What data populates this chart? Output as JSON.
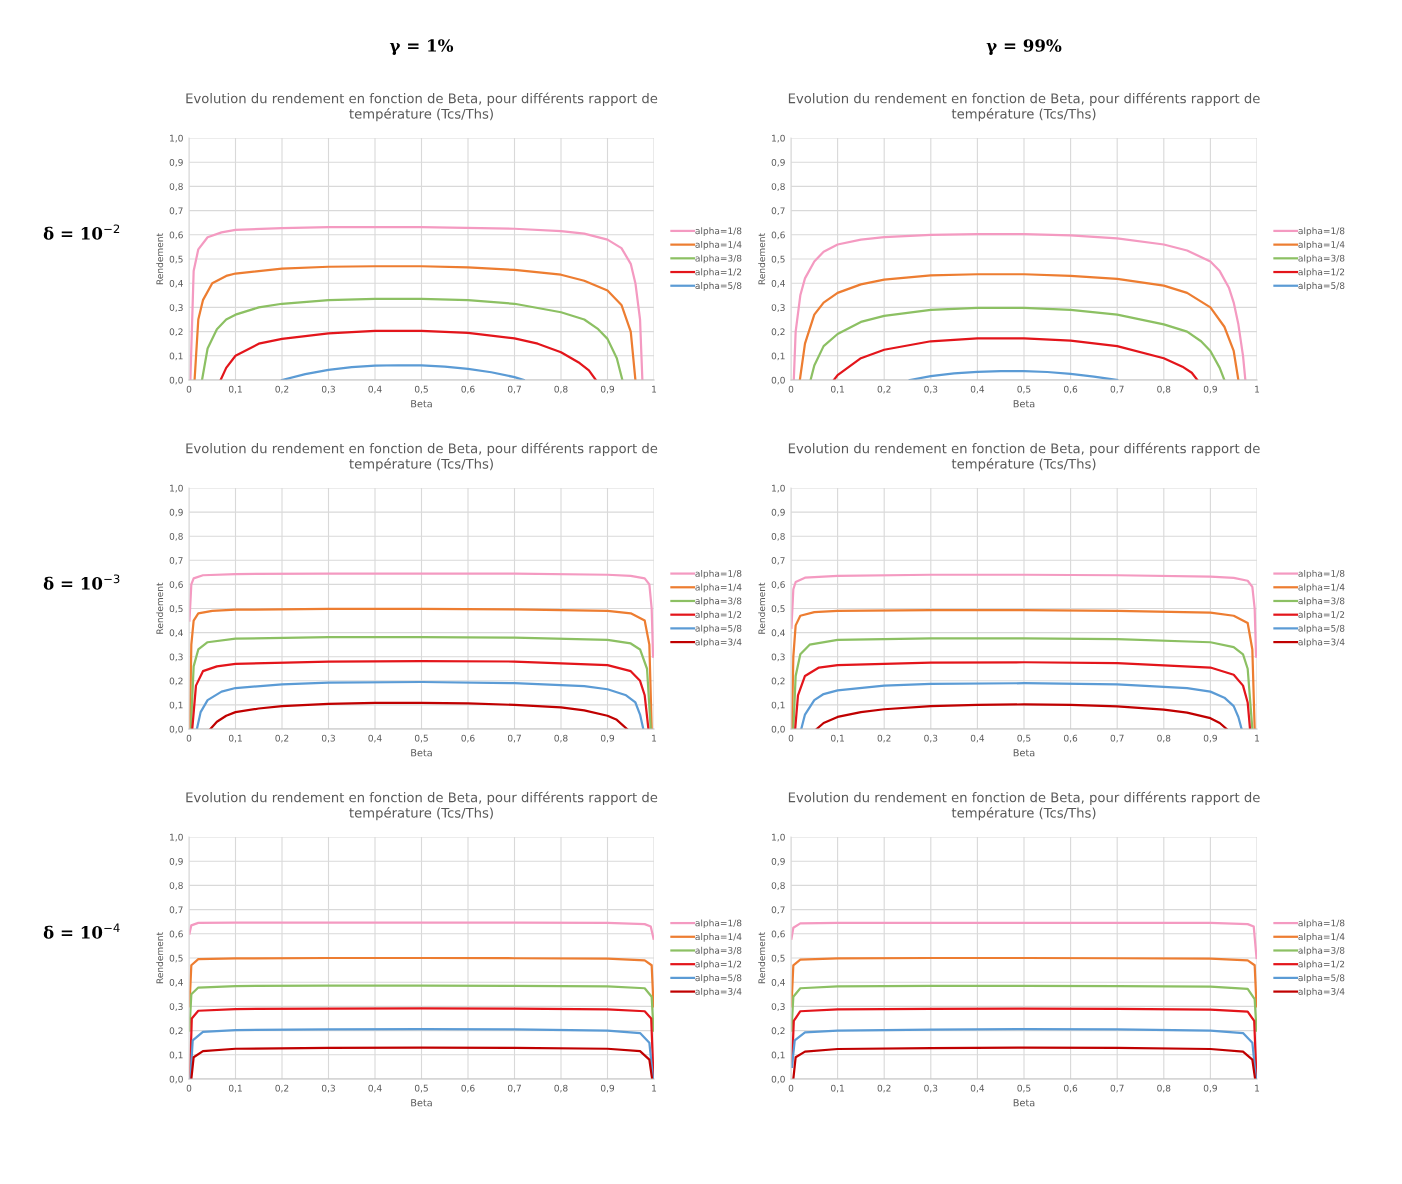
{
  "chart_data": [
    {
      "type": "line",
      "title": "Evolution du rendement en fonction de Beta, pour différents rapport de\ntempérature (Tcs/Ths)",
      "xlabel": "Beta",
      "ylabel": "Rendement",
      "annotations": [
        "γ = 1%",
        "δ = 10$^{−2}$"
      ],
      "xlim": [
        0,
        1
      ],
      "ylim": [
        0,
        1
      ],
      "xticks": [
        0,
        {
          "value": 0.1,
          "label": "0,1"
        },
        {
          "value": 0.2,
          "label": "0,2"
        },
        {
          "value": 0.3,
          "label": "0,3"
        },
        {
          "value": 0.4,
          "label": "0,4"
        },
        {
          "value": 0.5,
          "label": "0,5"
        },
        {
          "value": 0.6,
          "label": "0,6"
        },
        {
          "value": 0.7,
          "label": "0,7"
        },
        {
          "value": 0.8,
          "label": "0,8"
        },
        {
          "value": 0.9,
          "label": "0,9"
        },
        1
      ],
      "yticks": [
        {
          "value": 0,
          "label": "0,0"
        },
        {
          "value": 0.1,
          "label": "0,1"
        },
        {
          "value": 0.2,
          "label": "0,2"
        },
        {
          "value": 0.3,
          "label": "0,3"
        },
        {
          "value": 0.4,
          "label": "0,4"
        },
        {
          "value": 0.5,
          "label": "0,5"
        },
        {
          "value": 0.6,
          "label": "0,6"
        },
        {
          "value": 0.7,
          "label": "0,7"
        },
        {
          "value": 0.8,
          "label": "0,8"
        },
        {
          "value": 0.9,
          "label": "0,9"
        },
        {
          "value": 1,
          "label": "1,0"
        }
      ],
      "grid": true,
      "legend": "right",
      "marker": "none",
      "line_style": "solid",
      "series": [
        {
          "name": "alpha=1/8",
          "color": "#f49ac1",
          "x": [
            0.003,
            0.01,
            0.02,
            0.04,
            0.07,
            0.1,
            0.2,
            0.3,
            0.5,
            0.7,
            0.8,
            0.85,
            0.9,
            0.93,
            0.95,
            0.96,
            0.97,
            0.975
          ],
          "values": [
            0,
            0.45,
            0.54,
            0.59,
            0.61,
            0.62,
            0.628,
            0.632,
            0.632,
            0.625,
            0.615,
            0.605,
            0.58,
            0.545,
            0.48,
            0.4,
            0.25,
            0
          ]
        },
        {
          "name": "alpha=1/4",
          "color": "#ed7d31",
          "x": [
            0.012,
            0.02,
            0.03,
            0.05,
            0.08,
            0.1,
            0.2,
            0.3,
            0.4,
            0.5,
            0.6,
            0.7,
            0.8,
            0.85,
            0.9,
            0.93,
            0.95,
            0.96
          ],
          "values": [
            0,
            0.25,
            0.33,
            0.4,
            0.43,
            0.44,
            0.46,
            0.468,
            0.47,
            0.47,
            0.465,
            0.455,
            0.435,
            0.41,
            0.37,
            0.31,
            0.2,
            0
          ]
        },
        {
          "name": "alpha=3/8",
          "color": "#8cc063",
          "x": [
            0.028,
            0.04,
            0.06,
            0.08,
            0.1,
            0.15,
            0.2,
            0.3,
            0.4,
            0.5,
            0.6,
            0.7,
            0.8,
            0.85,
            0.88,
            0.9,
            0.92,
            0.932
          ],
          "values": [
            0,
            0.13,
            0.21,
            0.25,
            0.27,
            0.3,
            0.315,
            0.33,
            0.335,
            0.335,
            0.33,
            0.315,
            0.28,
            0.25,
            0.21,
            0.17,
            0.09,
            0
          ]
        },
        {
          "name": "alpha=1/2",
          "color": "#e3151b",
          "x": [
            0.068,
            0.08,
            0.1,
            0.15,
            0.2,
            0.3,
            0.4,
            0.5,
            0.6,
            0.7,
            0.75,
            0.8,
            0.84,
            0.86,
            0.875
          ],
          "values": [
            0,
            0.05,
            0.1,
            0.15,
            0.17,
            0.193,
            0.203,
            0.203,
            0.195,
            0.172,
            0.15,
            0.115,
            0.07,
            0.04,
            0
          ]
        },
        {
          "name": "alpha=5/8",
          "color": "#5b9bd5",
          "x": [
            0.2,
            0.25,
            0.3,
            0.35,
            0.4,
            0.45,
            0.5,
            0.55,
            0.6,
            0.65,
            0.7,
            0.72
          ],
          "values": [
            0,
            0.024,
            0.042,
            0.053,
            0.059,
            0.061,
            0.06,
            0.055,
            0.046,
            0.032,
            0.012,
            0
          ]
        }
      ]
    },
    {
      "type": "line",
      "title": "Evolution du rendement en fonction de Beta, pour différents rapport de\ntempérature (Tcs/Ths)",
      "xlabel": "Beta",
      "ylabel": "Rendement",
      "annotations": [
        "γ = 99%"
      ],
      "xlim": [
        0,
        1
      ],
      "ylim": [
        0,
        1
      ],
      "xticks": [
        0,
        {
          "value": 0.1,
          "label": "0,1"
        },
        {
          "value": 0.2,
          "label": "0,2"
        },
        {
          "value": 0.3,
          "label": "0,3"
        },
        {
          "value": 0.4,
          "label": "0,4"
        },
        {
          "value": 0.5,
          "label": "0,5"
        },
        {
          "value": 0.6,
          "label": "0,6"
        },
        {
          "value": 0.7,
          "label": "0,7"
        },
        {
          "value": 0.8,
          "label": "0,8"
        },
        {
          "value": 0.9,
          "label": "0,9"
        },
        1
      ],
      "yticks": [
        {
          "value": 0,
          "label": "0,0"
        },
        {
          "value": 0.1,
          "label": "0,1"
        },
        {
          "value": 0.2,
          "label": "0,2"
        },
        {
          "value": 0.3,
          "label": "0,3"
        },
        {
          "value": 0.4,
          "label": "0,4"
        },
        {
          "value": 0.5,
          "label": "0,5"
        },
        {
          "value": 0.6,
          "label": "0,6"
        },
        {
          "value": 0.7,
          "label": "0,7"
        },
        {
          "value": 0.8,
          "label": "0,8"
        },
        {
          "value": 0.9,
          "label": "0,9"
        },
        {
          "value": 1,
          "label": "1,0"
        }
      ],
      "grid": true,
      "legend": "right",
      "marker": "none",
      "line_style": "solid",
      "series": [
        {
          "name": "alpha=1/8",
          "color": "#f49ac1",
          "x": [
            0.006,
            0.01,
            0.02,
            0.03,
            0.05,
            0.07,
            0.1,
            0.15,
            0.2,
            0.3,
            0.4,
            0.5,
            0.6,
            0.7,
            0.8,
            0.85,
            0.9,
            0.92,
            0.94,
            0.95,
            0.96,
            0.97,
            0.975
          ],
          "values": [
            0,
            0.2,
            0.35,
            0.42,
            0.49,
            0.53,
            0.56,
            0.58,
            0.59,
            0.6,
            0.603,
            0.603,
            0.598,
            0.585,
            0.56,
            0.535,
            0.49,
            0.45,
            0.38,
            0.32,
            0.23,
            0.1,
            0
          ]
        },
        {
          "name": "alpha=1/4",
          "color": "#ed7d31",
          "x": [
            0.019,
            0.03,
            0.05,
            0.07,
            0.1,
            0.15,
            0.2,
            0.3,
            0.4,
            0.5,
            0.6,
            0.7,
            0.8,
            0.85,
            0.9,
            0.93,
            0.95,
            0.96
          ],
          "values": [
            0,
            0.15,
            0.27,
            0.32,
            0.36,
            0.395,
            0.415,
            0.432,
            0.437,
            0.437,
            0.43,
            0.418,
            0.39,
            0.36,
            0.3,
            0.22,
            0.12,
            0
          ]
        },
        {
          "name": "alpha=3/8",
          "color": "#8cc063",
          "x": [
            0.042,
            0.05,
            0.07,
            0.1,
            0.15,
            0.2,
            0.3,
            0.4,
            0.5,
            0.6,
            0.7,
            0.8,
            0.85,
            0.88,
            0.9,
            0.92,
            0.93
          ],
          "values": [
            0,
            0.06,
            0.14,
            0.19,
            0.24,
            0.265,
            0.29,
            0.298,
            0.298,
            0.29,
            0.27,
            0.23,
            0.2,
            0.16,
            0.12,
            0.05,
            0
          ]
        },
        {
          "name": "alpha=1/2",
          "color": "#e3151b",
          "x": [
            0.092,
            0.1,
            0.15,
            0.2,
            0.3,
            0.4,
            0.5,
            0.6,
            0.7,
            0.8,
            0.84,
            0.86,
            0.872
          ],
          "values": [
            0,
            0.02,
            0.09,
            0.125,
            0.16,
            0.172,
            0.172,
            0.163,
            0.14,
            0.09,
            0.055,
            0.03,
            0
          ]
        },
        {
          "name": "alpha=5/8",
          "color": "#5b9bd5",
          "x": [
            0.255,
            0.3,
            0.35,
            0.4,
            0.45,
            0.5,
            0.55,
            0.6,
            0.65,
            0.7
          ],
          "values": [
            0,
            0.016,
            0.027,
            0.034,
            0.037,
            0.037,
            0.033,
            0.025,
            0.014,
            0
          ]
        }
      ]
    },
    {
      "type": "line",
      "title": "Evolution du rendement en fonction de Beta, pour différents rapport de\ntempérature (Tcs/Ths)",
      "xlabel": "Beta",
      "ylabel": "Rendement",
      "annotations": [
        "δ = 10$^{−3}$"
      ],
      "xlim": [
        0,
        1
      ],
      "ylim": [
        0,
        1
      ],
      "xticks": [
        0,
        {
          "value": 0.1,
          "label": "0,1"
        },
        {
          "value": 0.2,
          "label": "0,2"
        },
        {
          "value": 0.3,
          "label": "0,3"
        },
        {
          "value": 0.4,
          "label": "0,4"
        },
        {
          "value": 0.5,
          "label": "0,5"
        },
        {
          "value": 0.6,
          "label": "0,6"
        },
        {
          "value": 0.7,
          "label": "0,7"
        },
        {
          "value": 0.8,
          "label": "0,8"
        },
        {
          "value": 0.9,
          "label": "0,9"
        },
        1
      ],
      "yticks": [
        {
          "value": 0,
          "label": "0,0"
        },
        {
          "value": 0.1,
          "label": "0,1"
        },
        {
          "value": 0.2,
          "label": "0,2"
        },
        {
          "value": 0.3,
          "label": "0,3"
        },
        {
          "value": 0.4,
          "label": "0,4"
        },
        {
          "value": 0.5,
          "label": "0,5"
        },
        {
          "value": 0.6,
          "label": "0,6"
        },
        {
          "value": 0.7,
          "label": "0,7"
        },
        {
          "value": 0.8,
          "label": "0,8"
        },
        {
          "value": 0.9,
          "label": "0,9"
        },
        {
          "value": 1,
          "label": "1,0"
        }
      ],
      "grid": true,
      "legend": "right",
      "marker": "none",
      "line_style": "solid",
      "series": [
        {
          "name": "alpha=1/8",
          "color": "#f49ac1",
          "x": [
            0.001,
            0.005,
            0.01,
            0.03,
            0.1,
            0.3,
            0.5,
            0.7,
            0.9,
            0.95,
            0.98,
            0.99,
            0.995,
            0.998
          ],
          "values": [
            0.45,
            0.6,
            0.625,
            0.638,
            0.643,
            0.645,
            0.645,
            0.645,
            0.64,
            0.635,
            0.625,
            0.6,
            0.5,
            0.3
          ]
        },
        {
          "name": "alpha=1/4",
          "color": "#ed7d31",
          "x": [
            0.002,
            0.005,
            0.01,
            0.02,
            0.05,
            0.1,
            0.3,
            0.5,
            0.7,
            0.9,
            0.95,
            0.98,
            0.99,
            0.995
          ],
          "values": [
            0,
            0.35,
            0.45,
            0.48,
            0.49,
            0.495,
            0.498,
            0.498,
            0.496,
            0.49,
            0.48,
            0.45,
            0.35,
            0
          ]
        },
        {
          "name": "alpha=3/8",
          "color": "#8cc063",
          "x": [
            0.004,
            0.01,
            0.02,
            0.04,
            0.1,
            0.3,
            0.5,
            0.7,
            0.9,
            0.95,
            0.97,
            0.985,
            0.993
          ],
          "values": [
            0,
            0.26,
            0.33,
            0.36,
            0.375,
            0.381,
            0.381,
            0.379,
            0.37,
            0.355,
            0.33,
            0.25,
            0
          ]
        },
        {
          "name": "alpha=1/2",
          "color": "#e3151b",
          "x": [
            0.007,
            0.015,
            0.03,
            0.06,
            0.1,
            0.3,
            0.5,
            0.7,
            0.9,
            0.95,
            0.97,
            0.98,
            0.988
          ],
          "values": [
            0,
            0.18,
            0.24,
            0.26,
            0.27,
            0.28,
            0.282,
            0.28,
            0.265,
            0.24,
            0.2,
            0.14,
            0
          ]
        },
        {
          "name": "alpha=5/8",
          "color": "#5b9bd5",
          "x": [
            0.017,
            0.025,
            0.04,
            0.07,
            0.1,
            0.2,
            0.3,
            0.5,
            0.7,
            0.85,
            0.9,
            0.94,
            0.96,
            0.97,
            0.977
          ],
          "values": [
            0,
            0.07,
            0.12,
            0.155,
            0.17,
            0.185,
            0.192,
            0.195,
            0.19,
            0.178,
            0.165,
            0.14,
            0.11,
            0.06,
            0
          ]
        },
        {
          "name": "alpha=3/4",
          "color": "#c00000",
          "x": [
            0.046,
            0.06,
            0.08,
            0.1,
            0.15,
            0.2,
            0.3,
            0.4,
            0.5,
            0.6,
            0.7,
            0.8,
            0.85,
            0.9,
            0.92,
            0.942
          ],
          "values": [
            0,
            0.03,
            0.055,
            0.07,
            0.085,
            0.095,
            0.104,
            0.108,
            0.108,
            0.106,
            0.1,
            0.09,
            0.077,
            0.055,
            0.038,
            0
          ]
        }
      ]
    },
    {
      "type": "line",
      "title": "Evolution du rendement en fonction de Beta, pour différents rapport de\ntempérature (Tcs/Ths)",
      "xlabel": "Beta",
      "ylabel": "Rendement",
      "xlim": [
        0,
        1
      ],
      "ylim": [
        0,
        1
      ],
      "xticks": [
        0,
        {
          "value": 0.1,
          "label": "0,1"
        },
        {
          "value": 0.2,
          "label": "0,2"
        },
        {
          "value": 0.3,
          "label": "0,3"
        },
        {
          "value": 0.4,
          "label": "0,4"
        },
        {
          "value": 0.5,
          "label": "0,5"
        },
        {
          "value": 0.6,
          "label": "0,6"
        },
        {
          "value": 0.7,
          "label": "0,7"
        },
        {
          "value": 0.8,
          "label": "0,8"
        },
        {
          "value": 0.9,
          "label": "0,9"
        },
        1
      ],
      "yticks": [
        {
          "value": 0,
          "label": "0,0"
        },
        {
          "value": 0.1,
          "label": "0,1"
        },
        {
          "value": 0.2,
          "label": "0,2"
        },
        {
          "value": 0.3,
          "label": "0,3"
        },
        {
          "value": 0.4,
          "label": "0,4"
        },
        {
          "value": 0.5,
          "label": "0,5"
        },
        {
          "value": 0.6,
          "label": "0,6"
        },
        {
          "value": 0.7,
          "label": "0,7"
        },
        {
          "value": 0.8,
          "label": "0,8"
        },
        {
          "value": 0.9,
          "label": "0,9"
        },
        {
          "value": 1,
          "label": "1,0"
        }
      ],
      "grid": true,
      "legend": "right",
      "marker": "none",
      "line_style": "solid",
      "series": [
        {
          "name": "alpha=1/8",
          "color": "#f49ac1",
          "x": [
            0.001,
            0.005,
            0.01,
            0.03,
            0.1,
            0.3,
            0.5,
            0.7,
            0.9,
            0.95,
            0.98,
            0.99,
            0.995,
            0.998
          ],
          "values": [
            0.42,
            0.58,
            0.61,
            0.628,
            0.635,
            0.64,
            0.64,
            0.638,
            0.632,
            0.627,
            0.615,
            0.59,
            0.5,
            0.3
          ]
        },
        {
          "name": "alpha=1/4",
          "color": "#ed7d31",
          "x": [
            0.002,
            0.005,
            0.01,
            0.02,
            0.05,
            0.1,
            0.3,
            0.5,
            0.7,
            0.9,
            0.95,
            0.98,
            0.99,
            0.995
          ],
          "values": [
            0,
            0.3,
            0.43,
            0.47,
            0.485,
            0.49,
            0.493,
            0.493,
            0.49,
            0.483,
            0.47,
            0.44,
            0.33,
            0
          ]
        },
        {
          "name": "alpha=3/8",
          "color": "#8cc063",
          "x": [
            0.005,
            0.01,
            0.02,
            0.04,
            0.1,
            0.3,
            0.5,
            0.7,
            0.9,
            0.95,
            0.97,
            0.98,
            0.99
          ],
          "values": [
            0,
            0.22,
            0.31,
            0.35,
            0.37,
            0.376,
            0.376,
            0.373,
            0.36,
            0.34,
            0.31,
            0.25,
            0
          ]
        },
        {
          "name": "alpha=1/2",
          "color": "#e3151b",
          "x": [
            0.009,
            0.015,
            0.03,
            0.06,
            0.1,
            0.3,
            0.5,
            0.7,
            0.9,
            0.95,
            0.97,
            0.98,
            0.985
          ],
          "values": [
            0,
            0.14,
            0.22,
            0.255,
            0.265,
            0.275,
            0.277,
            0.273,
            0.255,
            0.225,
            0.18,
            0.11,
            0
          ]
        },
        {
          "name": "alpha=5/8",
          "color": "#5b9bd5",
          "x": [
            0.022,
            0.03,
            0.05,
            0.07,
            0.1,
            0.2,
            0.3,
            0.5,
            0.7,
            0.85,
            0.9,
            0.93,
            0.95,
            0.96,
            0.967
          ],
          "values": [
            0,
            0.06,
            0.12,
            0.145,
            0.16,
            0.18,
            0.187,
            0.19,
            0.185,
            0.17,
            0.155,
            0.13,
            0.095,
            0.05,
            0
          ]
        },
        {
          "name": "alpha=3/4",
          "color": "#c00000",
          "x": [
            0.055,
            0.07,
            0.1,
            0.15,
            0.2,
            0.3,
            0.4,
            0.5,
            0.6,
            0.7,
            0.8,
            0.85,
            0.9,
            0.92,
            0.935
          ],
          "values": [
            0,
            0.025,
            0.05,
            0.07,
            0.082,
            0.095,
            0.1,
            0.102,
            0.1,
            0.094,
            0.08,
            0.068,
            0.045,
            0.025,
            0
          ]
        }
      ]
    },
    {
      "type": "line",
      "title": "Evolution du rendement en fonction de Beta, pour différents rapport de\ntempérature (Tcs/Ths)",
      "xlabel": "Beta",
      "ylabel": "Rendement",
      "annotations": [
        "δ = 10$^{−4}$"
      ],
      "xlim": [
        0,
        1
      ],
      "ylim": [
        0,
        1
      ],
      "xticks": [
        0,
        {
          "value": 0.1,
          "label": "0,1"
        },
        {
          "value": 0.2,
          "label": "0,2"
        },
        {
          "value": 0.3,
          "label": "0,3"
        },
        {
          "value": 0.4,
          "label": "0,4"
        },
        {
          "value": 0.5,
          "label": "0,5"
        },
        {
          "value": 0.6,
          "label": "0,6"
        },
        {
          "value": 0.7,
          "label": "0,7"
        },
        {
          "value": 0.8,
          "label": "0,8"
        },
        {
          "value": 0.9,
          "label": "0,9"
        },
        1
      ],
      "yticks": [
        {
          "value": 0,
          "label": "0,0"
        },
        {
          "value": 0.1,
          "label": "0,1"
        },
        {
          "value": 0.2,
          "label": "0,2"
        },
        {
          "value": 0.3,
          "label": "0,3"
        },
        {
          "value": 0.4,
          "label": "0,4"
        },
        {
          "value": 0.5,
          "label": "0,5"
        },
        {
          "value": 0.6,
          "label": "0,6"
        },
        {
          "value": 0.7,
          "label": "0,7"
        },
        {
          "value": 0.8,
          "label": "0,8"
        },
        {
          "value": 0.9,
          "label": "0,9"
        },
        {
          "value": 1,
          "label": "1,0"
        }
      ],
      "grid": true,
      "legend": "right",
      "marker": "none",
      "line_style": "solid",
      "series": [
        {
          "name": "alpha=1/8",
          "color": "#f49ac1",
          "x": [
            0.001,
            0.005,
            0.02,
            0.1,
            0.3,
            0.5,
            0.7,
            0.9,
            0.98,
            0.993,
            0.999
          ],
          "values": [
            0.6,
            0.635,
            0.645,
            0.646,
            0.646,
            0.646,
            0.646,
            0.645,
            0.64,
            0.63,
            0.58
          ]
        },
        {
          "name": "alpha=1/4",
          "color": "#ed7d31",
          "x": [
            0.001,
            0.005,
            0.02,
            0.1,
            0.3,
            0.5,
            0.7,
            0.9,
            0.98,
            0.995,
            0.999
          ],
          "values": [
            0.3,
            0.47,
            0.495,
            0.498,
            0.5,
            0.5,
            0.499,
            0.497,
            0.49,
            0.47,
            0.3
          ]
        },
        {
          "name": "alpha=3/8",
          "color": "#8cc063",
          "x": [
            0.001,
            0.005,
            0.02,
            0.1,
            0.3,
            0.5,
            0.7,
            0.9,
            0.98,
            0.995,
            0.999
          ],
          "values": [
            0.2,
            0.35,
            0.378,
            0.384,
            0.386,
            0.386,
            0.385,
            0.383,
            0.375,
            0.34,
            0.2
          ]
        },
        {
          "name": "alpha=1/2",
          "color": "#e3151b",
          "x": [
            0.002,
            0.006,
            0.02,
            0.1,
            0.3,
            0.5,
            0.7,
            0.9,
            0.98,
            0.994,
            0.999
          ],
          "values": [
            0,
            0.25,
            0.282,
            0.289,
            0.291,
            0.292,
            0.291,
            0.288,
            0.28,
            0.25,
            0
          ]
        },
        {
          "name": "alpha=5/8",
          "color": "#5b9bd5",
          "x": [
            0.003,
            0.008,
            0.03,
            0.1,
            0.3,
            0.5,
            0.7,
            0.9,
            0.97,
            0.99,
            0.998
          ],
          "values": [
            0,
            0.16,
            0.195,
            0.202,
            0.205,
            0.206,
            0.205,
            0.2,
            0.19,
            0.15,
            0
          ]
        },
        {
          "name": "alpha=3/4",
          "color": "#c00000",
          "x": [
            0.005,
            0.01,
            0.03,
            0.1,
            0.3,
            0.5,
            0.7,
            0.9,
            0.97,
            0.99,
            0.996
          ],
          "values": [
            0,
            0.09,
            0.115,
            0.125,
            0.129,
            0.13,
            0.129,
            0.125,
            0.115,
            0.08,
            0
          ]
        }
      ]
    },
    {
      "type": "line",
      "title": "Evolution du rendement en fonction de Beta, pour différents rapport de\ntempérature (Tcs/Ths)",
      "xlabel": "Beta",
      "ylabel": "Rendement",
      "xlim": [
        0,
        1
      ],
      "ylim": [
        0,
        1
      ],
      "xticks": [
        0,
        {
          "value": 0.1,
          "label": "0,1"
        },
        {
          "value": 0.2,
          "label": "0,2"
        },
        {
          "value": 0.3,
          "label": "0,3"
        },
        {
          "value": 0.4,
          "label": "0,4"
        },
        {
          "value": 0.5,
          "label": "0,5"
        },
        {
          "value": 0.6,
          "label": "0,6"
        },
        {
          "value": 0.7,
          "label": "0,7"
        },
        {
          "value": 0.8,
          "label": "0,8"
        },
        {
          "value": 0.9,
          "label": "0,9"
        },
        1
      ],
      "yticks": [
        {
          "value": 0,
          "label": "0,0"
        },
        {
          "value": 0.1,
          "label": "0,1"
        },
        {
          "value": 0.2,
          "label": "0,2"
        },
        {
          "value": 0.3,
          "label": "0,3"
        },
        {
          "value": 0.4,
          "label": "0,4"
        },
        {
          "value": 0.5,
          "label": "0,5"
        },
        {
          "value": 0.6,
          "label": "0,6"
        },
        {
          "value": 0.7,
          "label": "0,7"
        },
        {
          "value": 0.8,
          "label": "0,8"
        },
        {
          "value": 0.9,
          "label": "0,9"
        },
        {
          "value": 1,
          "label": "1,0"
        }
      ],
      "grid": true,
      "legend": "right",
      "marker": "none",
      "line_style": "solid",
      "series": [
        {
          "name": "alpha=1/8",
          "color": "#f49ac1",
          "x": [
            0.001,
            0.005,
            0.02,
            0.1,
            0.3,
            0.5,
            0.7,
            0.9,
            0.98,
            0.993,
            0.999
          ],
          "values": [
            0.58,
            0.625,
            0.643,
            0.645,
            0.645,
            0.645,
            0.645,
            0.645,
            0.64,
            0.63,
            0.5
          ]
        },
        {
          "name": "alpha=1/4",
          "color": "#ed7d31",
          "x": [
            0.001,
            0.005,
            0.02,
            0.1,
            0.3,
            0.5,
            0.7,
            0.9,
            0.98,
            0.995,
            0.999
          ],
          "values": [
            0.3,
            0.47,
            0.493,
            0.498,
            0.5,
            0.5,
            0.499,
            0.497,
            0.49,
            0.47,
            0.3
          ]
        },
        {
          "name": "alpha=3/8",
          "color": "#8cc063",
          "x": [
            0.001,
            0.005,
            0.02,
            0.1,
            0.3,
            0.5,
            0.7,
            0.9,
            0.98,
            0.995,
            0.999
          ],
          "values": [
            0.2,
            0.34,
            0.375,
            0.383,
            0.385,
            0.385,
            0.384,
            0.382,
            0.372,
            0.33,
            0.2
          ]
        },
        {
          "name": "alpha=1/2",
          "color": "#e3151b",
          "x": [
            0.002,
            0.006,
            0.02,
            0.1,
            0.3,
            0.5,
            0.7,
            0.9,
            0.98,
            0.994,
            0.999
          ],
          "values": [
            0.05,
            0.24,
            0.28,
            0.288,
            0.29,
            0.291,
            0.29,
            0.287,
            0.278,
            0.24,
            0
          ]
        },
        {
          "name": "alpha=5/8",
          "color": "#5b9bd5",
          "x": [
            0.002,
            0.008,
            0.03,
            0.1,
            0.3,
            0.5,
            0.7,
            0.9,
            0.97,
            0.99,
            0.998
          ],
          "values": [
            0.05,
            0.16,
            0.193,
            0.2,
            0.204,
            0.206,
            0.205,
            0.2,
            0.19,
            0.15,
            0
          ]
        },
        {
          "name": "alpha=3/4",
          "color": "#c00000",
          "x": [
            0.005,
            0.01,
            0.03,
            0.1,
            0.3,
            0.5,
            0.7,
            0.9,
            0.97,
            0.99,
            0.996
          ],
          "values": [
            0,
            0.09,
            0.113,
            0.124,
            0.128,
            0.13,
            0.129,
            0.124,
            0.113,
            0.08,
            0
          ]
        }
      ]
    }
  ]
}
